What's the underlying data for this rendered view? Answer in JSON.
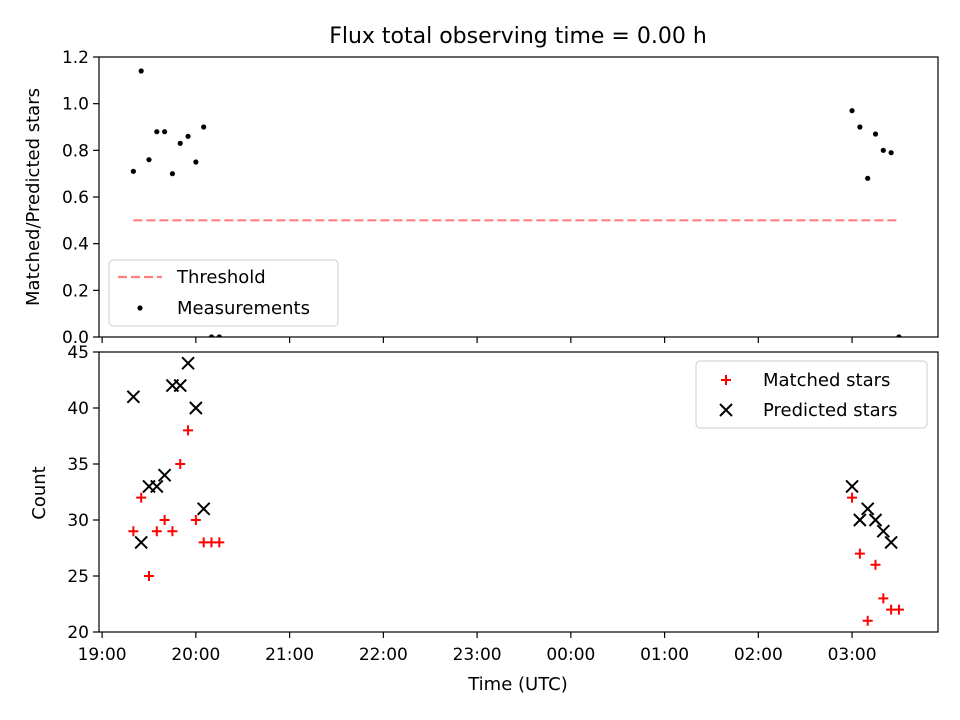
{
  "chart_data": [
    {
      "type": "scatter",
      "title": "Flux total observing time = 0.00 h",
      "xlabel": "",
      "ylabel": "Matched/Predicted stars",
      "ylim": [
        0,
        1.2
      ],
      "xlim": [
        "19:00",
        "03:55"
      ],
      "yticks": [
        "0.0",
        "0.2",
        "0.4",
        "0.6",
        "0.8",
        "1.0",
        "1.2"
      ],
      "legend_placement": "lower-left",
      "series": [
        {
          "name": "Threshold",
          "kind": "line",
          "style": "dashed",
          "color": "#ff7f7f",
          "x": [
            "19:20",
            "03:30"
          ],
          "y": [
            0.5,
            0.5
          ]
        },
        {
          "name": "Measurements",
          "kind": "scatter",
          "marker": "dot",
          "color": "#000000",
          "x": [
            "19:20",
            "19:25",
            "19:30",
            "19:35",
            "19:40",
            "19:45",
            "19:50",
            "19:55",
            "20:00",
            "20:05",
            "20:10",
            "20:15",
            "03:00",
            "03:05",
            "03:10",
            "03:15",
            "03:20",
            "03:25",
            "03:30"
          ],
          "y": [
            0.71,
            1.14,
            0.76,
            0.88,
            0.88,
            0.7,
            0.83,
            0.86,
            0.75,
            0.9,
            0.0,
            0.0,
            0.97,
            0.9,
            0.68,
            0.87,
            0.8,
            0.79,
            0.0
          ]
        }
      ]
    },
    {
      "type": "scatter",
      "xlabel": "Time (UTC)",
      "ylabel": "Count",
      "ylim": [
        20,
        45
      ],
      "xlim": [
        "19:00",
        "03:55"
      ],
      "yticks": [
        "20",
        "25",
        "30",
        "35",
        "40",
        "45"
      ],
      "xticks": [
        "19:00",
        "20:00",
        "21:00",
        "22:00",
        "23:00",
        "00:00",
        "01:00",
        "02:00",
        "03:00"
      ],
      "legend_placement": "top-right",
      "series": [
        {
          "name": "Matched stars",
          "marker": "plus",
          "color": "#ff0000",
          "x": [
            "19:20",
            "19:25",
            "19:30",
            "19:35",
            "19:40",
            "19:45",
            "19:50",
            "19:55",
            "20:00",
            "20:05",
            "20:10",
            "20:15",
            "03:00",
            "03:05",
            "03:10",
            "03:15",
            "03:20",
            "03:25",
            "03:30"
          ],
          "y": [
            29,
            32,
            25,
            29,
            30,
            29,
            35,
            38,
            30,
            28,
            28,
            28,
            32,
            27,
            21,
            26,
            23,
            22,
            22
          ]
        },
        {
          "name": "Predicted stars",
          "marker": "x",
          "color": "#000000",
          "x": [
            "19:20",
            "19:25",
            "19:30",
            "19:35",
            "19:40",
            "19:45",
            "19:50",
            "19:55",
            "20:00",
            "20:05",
            "03:00",
            "03:05",
            "03:10",
            "03:15",
            "03:20",
            "03:25"
          ],
          "y": [
            41,
            28,
            33,
            33,
            34,
            42,
            42,
            44,
            40,
            31,
            33,
            30,
            31,
            30,
            29,
            28
          ]
        }
      ]
    }
  ]
}
